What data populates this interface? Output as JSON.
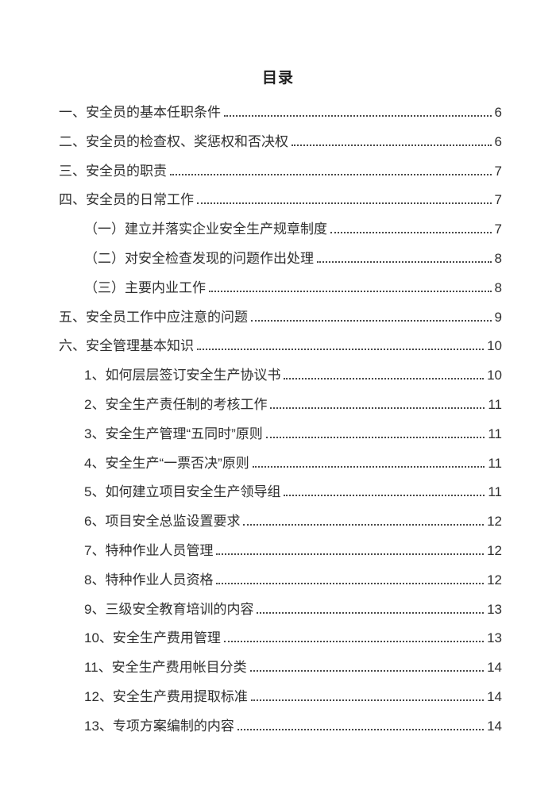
{
  "document": {
    "title": "目录"
  },
  "toc": {
    "entries": [
      {
        "label": "一、安全员的基本任职条件",
        "page": "6",
        "level": 1
      },
      {
        "label": "二、安全员的检查权、奖惩权和否决权",
        "page": "6",
        "level": 1
      },
      {
        "label": "三、安全员的职责",
        "page": "7",
        "level": 1
      },
      {
        "label": "四、安全员的日常工作",
        "page": "7",
        "level": 1
      },
      {
        "label": "（一）建立并落实企业安全生产规章制度",
        "page": "7",
        "level": 2
      },
      {
        "label": "（二）对安全检查发现的问题作出处理",
        "page": "8",
        "level": 2
      },
      {
        "label": "（三）主要内业工作",
        "page": "8",
        "level": 2
      },
      {
        "label": "五、安全员工作中应注意的问题",
        "page": "9",
        "level": 1
      },
      {
        "label": "六、安全管理基本知识",
        "page": "10",
        "level": 1
      },
      {
        "label": "1、如何层层签订安全生产协议书",
        "page": "10",
        "level": 2
      },
      {
        "label": "2、安全生产责任制的考核工作",
        "page": "11",
        "level": 2
      },
      {
        "label": "3、安全生产管理“五同时”原则",
        "page": "11",
        "level": 2
      },
      {
        "label": "4、安全生产“一票否决”原则",
        "page": "11",
        "level": 2
      },
      {
        "label": "5、如何建立项目安全生产领导组",
        "page": "11",
        "level": 2
      },
      {
        "label": "6、项目安全总监设置要求",
        "page": "12",
        "level": 2
      },
      {
        "label": "7、特种作业人员管理",
        "page": "12",
        "level": 2
      },
      {
        "label": "8、特种作业人员资格",
        "page": "12",
        "level": 2
      },
      {
        "label": "9、三级安全教育培训的内容",
        "page": "13",
        "level": 2
      },
      {
        "label": "10、安全生产费用管理",
        "page": "13",
        "level": 2
      },
      {
        "label": "11、安全生产费用帐目分类",
        "page": "14",
        "level": 2
      },
      {
        "label": "12、安全生产费用提取标准",
        "page": "14",
        "level": 2
      },
      {
        "label": "13、专项方案编制的内容",
        "page": "14",
        "level": 2
      }
    ]
  },
  "colors": {
    "text": "#2f2f2f",
    "title": "#1f1f1f",
    "background": "#ffffff",
    "dot_leader": "#474747"
  }
}
